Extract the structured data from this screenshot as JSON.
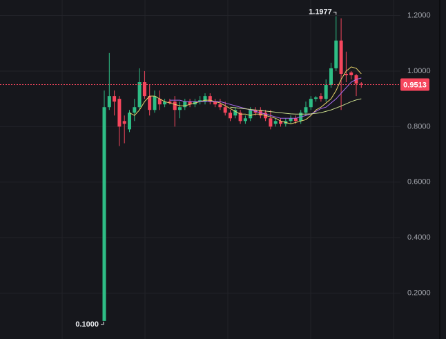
{
  "chart_data": {
    "type": "candlestick",
    "open": [
      0.1,
      0.87,
      0.91,
      0.9,
      0.82,
      0.79,
      0.85,
      0.87,
      0.96,
      0.91,
      0.86,
      0.9,
      0.88,
      0.89,
      0.89,
      0.86,
      0.87,
      0.89,
      0.88,
      0.89,
      0.89,
      0.91,
      0.89,
      0.88,
      0.87,
      0.85,
      0.84,
      0.85,
      0.82,
      0.83,
      0.86,
      0.86,
      0.85,
      0.83,
      0.81,
      0.82,
      0.81,
      0.82,
      0.83,
      0.82,
      0.85,
      0.87,
      0.9,
      0.91,
      0.9,
      0.95,
      1.01,
      1.11,
      0.99,
      0.995,
      0.985,
      0.955
    ],
    "high": [
      0.93,
      1.065,
      0.93,
      0.91,
      0.84,
      0.86,
      0.9,
      1.01,
      1.0,
      0.95,
      0.93,
      0.93,
      0.9,
      0.9,
      0.91,
      0.89,
      0.9,
      0.9,
      0.9,
      0.91,
      0.92,
      0.92,
      0.9,
      0.9,
      0.89,
      0.86,
      0.87,
      0.86,
      0.84,
      0.87,
      0.87,
      0.87,
      0.86,
      0.86,
      0.83,
      0.83,
      0.83,
      0.84,
      0.84,
      0.86,
      0.89,
      0.91,
      0.91,
      0.92,
      0.97,
      1.03,
      1.1977,
      1.19,
      1.07,
      1.0,
      0.99,
      0.96
    ],
    "low": [
      0.1,
      0.86,
      0.84,
      0.73,
      0.74,
      0.78,
      0.82,
      0.86,
      0.9,
      0.84,
      0.85,
      0.86,
      0.87,
      0.88,
      0.8,
      0.83,
      0.86,
      0.87,
      0.87,
      0.88,
      0.88,
      0.88,
      0.87,
      0.86,
      0.84,
      0.82,
      0.83,
      0.81,
      0.81,
      0.82,
      0.84,
      0.83,
      0.82,
      0.79,
      0.8,
      0.8,
      0.8,
      0.81,
      0.81,
      0.81,
      0.84,
      0.86,
      0.89,
      0.89,
      0.89,
      0.94,
      1.0,
      0.86,
      0.96,
      0.97,
      0.91,
      0.94
    ],
    "close": [
      0.87,
      0.91,
      0.89,
      0.8,
      0.81,
      0.85,
      0.87,
      0.96,
      0.91,
      0.86,
      0.91,
      0.88,
      0.89,
      0.885,
      0.86,
      0.87,
      0.89,
      0.88,
      0.89,
      0.895,
      0.91,
      0.89,
      0.88,
      0.87,
      0.85,
      0.83,
      0.86,
      0.82,
      0.83,
      0.86,
      0.85,
      0.84,
      0.83,
      0.8,
      0.82,
      0.81,
      0.82,
      0.83,
      0.82,
      0.85,
      0.87,
      0.9,
      0.905,
      0.9,
      0.95,
      1.01,
      1.11,
      0.99,
      0.985,
      0.985,
      0.955,
      0.9513
    ],
    "up_color": "#2ebd85",
    "down_color": "#f6465d",
    "lines": [
      {
        "color": "#e8d36a",
        "values": [
          null,
          null,
          null,
          null,
          null,
          0.85,
          0.84,
          0.86,
          0.89,
          0.91,
          0.91,
          0.9,
          0.89,
          0.885,
          0.88,
          0.875,
          0.875,
          0.88,
          0.885,
          0.89,
          0.895,
          0.895,
          0.89,
          0.885,
          0.875,
          0.865,
          0.855,
          0.845,
          0.845,
          0.84,
          0.845,
          0.845,
          0.84,
          0.835,
          0.83,
          0.82,
          0.815,
          0.81,
          0.815,
          0.82,
          0.825,
          0.84,
          0.86,
          0.87,
          0.885,
          0.9,
          0.93,
          0.97,
          1.0,
          1.015,
          1.01,
          0.99
        ]
      },
      {
        "color": "#a86bf0",
        "values": [
          null,
          null,
          null,
          null,
          null,
          null,
          null,
          null,
          null,
          null,
          null,
          null,
          null,
          0.895,
          0.895,
          0.895,
          0.89,
          0.89,
          0.89,
          0.89,
          0.89,
          0.89,
          0.89,
          0.89,
          0.885,
          0.88,
          0.875,
          0.87,
          0.865,
          0.86,
          0.855,
          0.85,
          0.845,
          0.84,
          0.835,
          0.83,
          0.83,
          0.83,
          0.83,
          0.835,
          0.84,
          0.845,
          0.855,
          0.865,
          0.87,
          0.885,
          0.9,
          0.92,
          0.94,
          0.96,
          0.97,
          0.975
        ]
      },
      {
        "color": "#c9dc8c",
        "values": [
          null,
          null,
          null,
          null,
          null,
          null,
          null,
          null,
          null,
          null,
          null,
          null,
          null,
          null,
          null,
          null,
          null,
          null,
          null,
          null,
          null,
          null,
          null,
          null,
          null,
          0.87,
          0.868,
          0.866,
          0.864,
          0.862,
          0.86,
          0.858,
          0.856,
          0.854,
          0.852,
          0.85,
          0.848,
          0.846,
          0.845,
          0.845,
          0.845,
          0.846,
          0.848,
          0.85,
          0.855,
          0.86,
          0.867,
          0.874,
          0.882,
          0.89,
          0.896,
          0.9
        ]
      }
    ],
    "high_label": "1.1977",
    "low_label": "0.1000",
    "last_price": {
      "value": 0.9513,
      "label": "0.9513"
    },
    "ylim": [
      0.035,
      1.256
    ],
    "yticks": [
      {
        "value": 0.2,
        "label": "0.2000"
      },
      {
        "value": 0.4,
        "label": "0.4000"
      },
      {
        "value": 0.6,
        "label": "0.6000"
      },
      {
        "value": 0.8,
        "label": "0.8000"
      },
      {
        "value": 1.0,
        "label": "1.0000"
      },
      {
        "value": 1.2,
        "label": "1.2000"
      }
    ],
    "grid": true
  }
}
